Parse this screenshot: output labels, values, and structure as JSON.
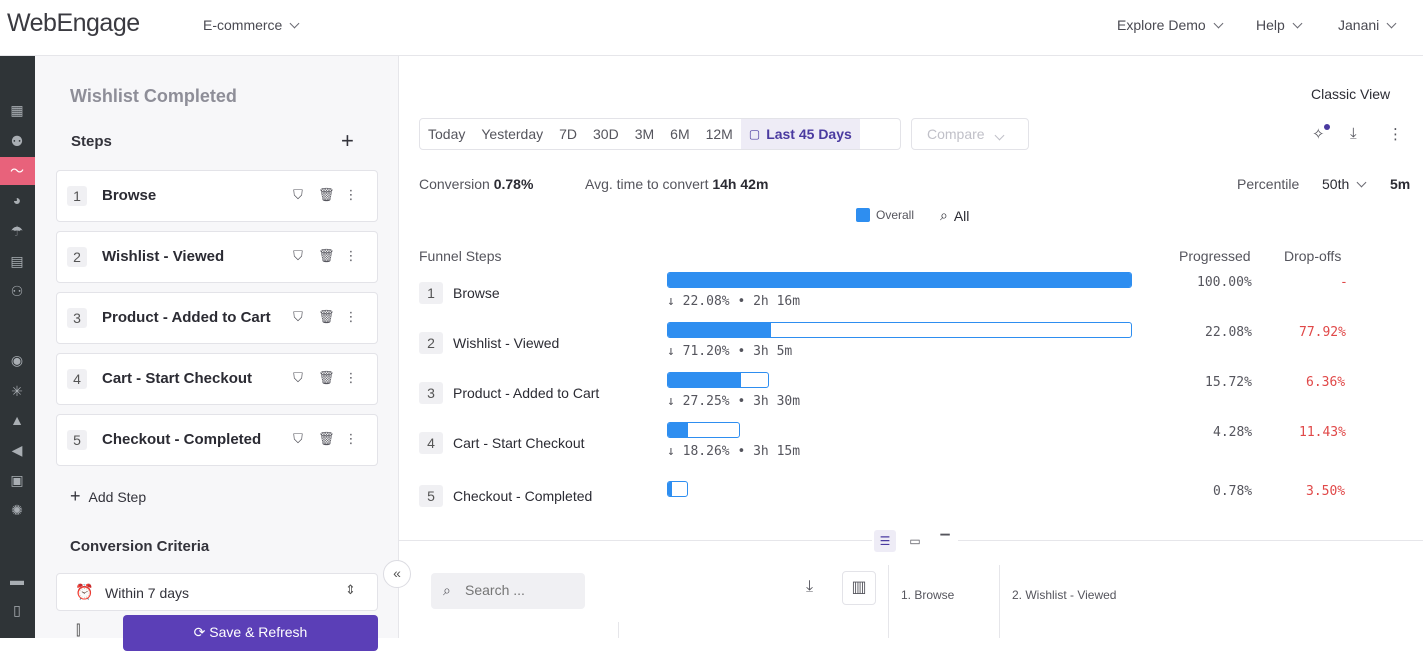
{
  "header": {
    "logo": "WebEngage",
    "project": "E-commerce",
    "explore_demo": "Explore Demo",
    "help": "Help",
    "user": "Janani"
  },
  "left": {
    "page_title": "Wishlist Completed",
    "steps_heading": "Steps",
    "steps": [
      {
        "num": "1",
        "name": "Browse"
      },
      {
        "num": "2",
        "name": "Wishlist - Viewed"
      },
      {
        "num": "3",
        "name": "Product - Added to Cart"
      },
      {
        "num": "4",
        "name": "Cart - Start Checkout"
      },
      {
        "num": "5",
        "name": "Checkout - Completed"
      }
    ],
    "add_step": "Add Step",
    "conversion_criteria": "Conversion Criteria",
    "within": "Within 7 days",
    "save_refresh": "Save & Refresh"
  },
  "main": {
    "classic_view": "Classic View",
    "ranges": [
      "Today",
      "Yesterday",
      "7D",
      "30D",
      "3M",
      "6M",
      "12M"
    ],
    "active_range": "Last 45 Days",
    "compare": "Compare",
    "conversion_label": "Conversion",
    "conversion_value": "0.78%",
    "avg_label": "Avg. time to convert",
    "avg_value": "14h 42m",
    "percentile_label": "Percentile",
    "percentile_value": "50th",
    "percentile_unit": "5m",
    "legend_overall": "Overall",
    "legend_all": "All",
    "funnel_steps_label": "Funnel Steps",
    "progressed_label": "Progressed",
    "dropoffs_label": "Drop-offs",
    "funnel": [
      {
        "num": "1",
        "name": "Browse",
        "progress": 1.0,
        "sub": "22.08% • 2h 16m",
        "progressed": "100.00%",
        "dropoff": "-"
      },
      {
        "num": "2",
        "name": "Wishlist - Viewed",
        "progress": 0.2208,
        "sub": "71.20% • 3h 5m",
        "progressed": "22.08%",
        "dropoff": "77.92%"
      },
      {
        "num": "3",
        "name": "Product - Added to Cart",
        "progress": 0.1572,
        "sub": "27.25% • 3h 30m",
        "progressed": "15.72%",
        "dropoff": "6.36%"
      },
      {
        "num": "4",
        "name": "Cart - Start Checkout",
        "progress": 0.0428,
        "sub": "18.26% • 3h 15m",
        "progressed": "4.28%",
        "dropoff": "11.43%"
      },
      {
        "num": "5",
        "name": "Checkout - Completed",
        "progress": 0.0078,
        "sub": "",
        "progressed": "0.78%",
        "dropoff": "3.50%"
      }
    ],
    "search_placeholder": "Search ...",
    "table_columns": [
      "1. Browse",
      "2. Wishlist - Viewed"
    ]
  },
  "colors": {
    "bar": "#2e8ef0",
    "dropoff": "#e04848",
    "primary": "#5b3fb7"
  }
}
